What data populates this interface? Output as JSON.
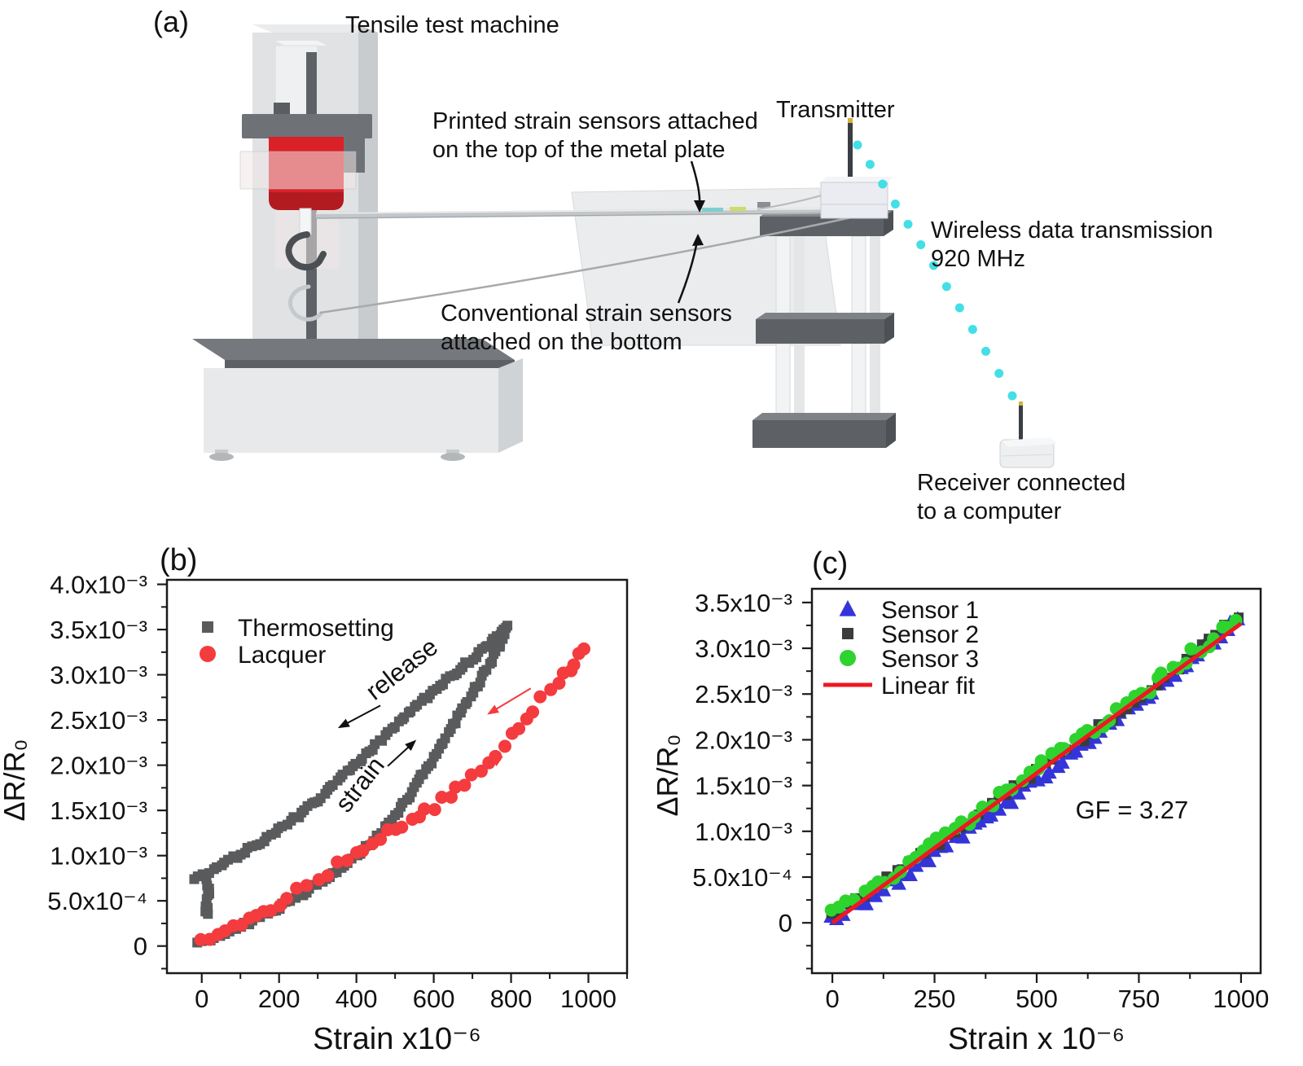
{
  "panel_a": {
    "label": "(a)",
    "machine_title": "Tensile test machine",
    "printed_sensors_line1": "Printed strain sensors attached",
    "printed_sensors_line2": "on the top of the metal plate",
    "conventional_sensors_line1": "Conventional strain sensors",
    "conventional_sensors_line2": "attached on the bottom",
    "transmitter": "Transmitter",
    "wireless_line1": "Wireless data transmission",
    "wireless_line2": "920 MHz",
    "receiver_line1": "Receiver connected",
    "receiver_line2": "to a computer",
    "colors": {
      "load_cell": "#da2127",
      "wireless_dots": "#43dfe6",
      "machine_body": "#e0e2e4",
      "frame_dark": "#5d6165"
    }
  },
  "chart_data": [
    {
      "id": "b",
      "type": "scatter",
      "panel_label": "(b)",
      "xlabel": "Strain x10⁻⁶",
      "ylabel": "ΔR/R₀",
      "xlim": [
        -90,
        1100
      ],
      "ylim_x1e3": [
        -0.3,
        4.05
      ],
      "grid": false,
      "legend_position": "top-left",
      "xticks": {
        "values": [
          0,
          200,
          400,
          600,
          800,
          1000
        ],
        "labels": [
          "0",
          "200",
          "400",
          "600",
          "800",
          "1000"
        ],
        "minor_step": 100
      },
      "yticks": {
        "values_x1e3": [
          0,
          0.5,
          1.0,
          1.5,
          2.0,
          2.5,
          3.0,
          3.5,
          4.0
        ],
        "labels": [
          "0",
          "5.0x10⁻⁴",
          "1.0x10⁻³",
          "1.5x10⁻³",
          "2.0x10⁻³",
          "2.5x10⁻³",
          "3.0x10⁻³",
          "3.5x10⁻³",
          "4.0x10⁻³"
        ],
        "minor_step": 0.25
      },
      "series": [
        {
          "name": "Thermosetting",
          "marker": "square",
          "color": "#595b5d",
          "paths_x1e3": [
            [
              [
                -10,
                0.02
              ],
              [
                0,
                0.05
              ],
              [
                50,
                0.13
              ],
              [
                100,
                0.22
              ],
              [
                150,
                0.32
              ],
              [
                200,
                0.43
              ],
              [
                250,
                0.55
              ],
              [
                300,
                0.68
              ],
              [
                350,
                0.82
              ],
              [
                400,
                0.98
              ],
              [
                450,
                1.2
              ],
              [
                500,
                1.45
              ],
              [
                550,
                1.75
              ],
              [
                600,
                2.08
              ],
              [
                650,
                2.44
              ],
              [
                700,
                2.8
              ],
              [
                750,
                3.16
              ],
              [
                780,
                3.4
              ],
              [
                790,
                3.55
              ],
              [
                770,
                3.46
              ],
              [
                740,
                3.34
              ],
              [
                700,
                3.18
              ],
              [
                650,
                3.0
              ],
              [
                600,
                2.82
              ],
              [
                550,
                2.63
              ],
              [
                500,
                2.43
              ],
              [
                450,
                2.22
              ],
              [
                400,
                2.02
              ],
              [
                350,
                1.82
              ],
              [
                300,
                1.62
              ],
              [
                250,
                1.44
              ],
              [
                200,
                1.28
              ],
              [
                150,
                1.14
              ],
              [
                100,
                1.02
              ],
              [
                50,
                0.9
              ],
              [
                10,
                0.79
              ],
              [
                -12,
                0.77
              ],
              [
                -18,
                0.72
              ]
            ],
            [
              [
                14,
                0.73
              ],
              [
                17,
                0.6
              ],
              [
                15,
                0.5
              ],
              [
                11,
                0.44
              ],
              [
                13,
                0.4
              ],
              [
                9,
                0.385
              ],
              [
                15,
                0.375
              ]
            ]
          ]
        },
        {
          "name": "Lacquer",
          "marker": "circle",
          "color": "#f43b3e",
          "paths_x1e3": [
            [
              [
                0,
                0.05
              ],
              [
                40,
                0.1
              ],
              [
                80,
                0.18
              ],
              [
                120,
                0.28
              ],
              [
                160,
                0.38
              ],
              [
                200,
                0.48
              ],
              [
                250,
                0.62
              ],
              [
                300,
                0.75
              ],
              [
                350,
                0.89
              ],
              [
                400,
                1.03
              ],
              [
                440,
                1.14
              ],
              [
                480,
                1.25
              ],
              [
                520,
                1.34
              ],
              [
                560,
                1.44
              ],
              [
                600,
                1.55
              ],
              [
                640,
                1.68
              ],
              [
                680,
                1.82
              ],
              [
                720,
                1.96
              ],
              [
                760,
                2.1
              ],
              [
                800,
                2.32
              ],
              [
                840,
                2.52
              ],
              [
                880,
                2.72
              ],
              [
                920,
                2.92
              ],
              [
                950,
                3.08
              ],
              [
                975,
                3.22
              ],
              [
                985,
                3.28
              ]
            ]
          ]
        }
      ],
      "annotations": [
        {
          "text": "release",
          "x": 531,
          "y_x1e3": 2.99,
          "rotate": -38
        },
        {
          "text": "strain",
          "x": 426,
          "y_x1e3": 1.73,
          "rotate": -52
        }
      ],
      "arrows": [
        {
          "x1": 462,
          "y1_x1e3": 2.66,
          "x2": 352,
          "y2_x1e3": 2.41,
          "color": "#111111"
        },
        {
          "x1": 481,
          "y1_x1e3": 1.99,
          "x2": 555,
          "y2_x1e3": 2.28,
          "color": "#111111"
        },
        {
          "x1": 851,
          "y1_x1e3": 2.85,
          "x2": 738,
          "y2_x1e3": 2.56,
          "color": "#f43b3e"
        },
        {
          "x1": 668,
          "y1_x1e3": 1.77,
          "x2": 780,
          "y2_x1e3": 2.1,
          "color": "#f43b3e"
        }
      ]
    },
    {
      "id": "c",
      "type": "scatter",
      "panel_label": "(c)",
      "xlabel": "Strain x 10⁻⁶",
      "ylabel": "ΔR/R₀",
      "xlim": [
        -50,
        1048
      ],
      "ylim_x1e3": [
        -0.55,
        3.65
      ],
      "grid": false,
      "legend_position": "top-left",
      "gauge_factor": 3.27,
      "xticks": {
        "values": [
          0,
          250,
          500,
          750,
          1000
        ],
        "labels": [
          "0",
          "250",
          "500",
          "750",
          "1000"
        ],
        "minor_step": 125
      },
      "yticks": {
        "values_x1e3": [
          0,
          0.5,
          1.0,
          1.5,
          2.0,
          2.5,
          3.0,
          3.5
        ],
        "labels": [
          "0",
          "5.0x10⁻⁴",
          "1.0x10⁻³",
          "1.5x10⁻³",
          "2.0x10⁻³",
          "2.5x10⁻³",
          "3.0x10⁻³",
          "3.5x10⁻³"
        ],
        "minor_step": 0.25
      },
      "series": [
        {
          "name": "Sensor 1",
          "marker": "triangle",
          "color": "#3435d8",
          "paths_x1e3": [
            [
              [
                0,
                0.03
              ],
              [
                110,
                0.34
              ],
              [
                220,
                0.66
              ],
              [
                330,
                1.0
              ],
              [
                440,
                1.36
              ],
              [
                550,
                1.74
              ],
              [
                660,
                2.12
              ],
              [
                770,
                2.48
              ],
              [
                880,
                2.88
              ],
              [
                940,
                3.08
              ],
              [
                990,
                3.3
              ]
            ]
          ]
        },
        {
          "name": "Sensor 2",
          "marker": "square",
          "color": "#3a3c3e",
          "paths_x1e3": [
            [
              [
                0,
                0.06
              ],
              [
                100,
                0.36
              ],
              [
                210,
                0.72
              ],
              [
                320,
                1.04
              ],
              [
                430,
                1.42
              ],
              [
                540,
                1.8
              ],
              [
                650,
                2.14
              ],
              [
                760,
                2.48
              ],
              [
                870,
                2.86
              ],
              [
                990,
                3.36
              ]
            ]
          ]
        },
        {
          "name": "Sensor 3",
          "marker": "circle",
          "color": "#2ed32e",
          "paths_x1e3": [
            [
              [
                0,
                0.09
              ],
              [
                95,
                0.36
              ],
              [
                205,
                0.68
              ],
              [
                315,
                1.06
              ],
              [
                425,
                1.44
              ],
              [
                535,
                1.8
              ],
              [
                645,
                2.12
              ],
              [
                755,
                2.5
              ],
              [
                865,
                2.88
              ],
              [
                985,
                3.32
              ]
            ]
          ]
        },
        {
          "name": "Linear fit",
          "marker": "line",
          "color": "#f01721",
          "paths_x1e3": [
            [
              [
                0,
                0.0
              ],
              [
                1000,
                3.27
              ]
            ]
          ]
        }
      ],
      "annotations": [
        {
          "text": "GF = 3.27",
          "x": 733,
          "y_x1e3": 1.14,
          "rotate": 0
        }
      ],
      "arrows": []
    }
  ]
}
